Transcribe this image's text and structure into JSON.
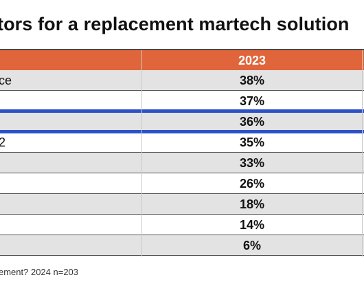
{
  "chart_data": {
    "type": "table",
    "title": "tors for a replacement martech solution",
    "columns": [
      "",
      "2023"
    ],
    "rows": [
      {
        "label": "ce",
        "value": "38%"
      },
      {
        "label": "",
        "value": "37%"
      },
      {
        "label": "",
        "value": "36%"
      },
      {
        "label": "2",
        "value": "35%"
      },
      {
        "label": "",
        "value": "33%"
      },
      {
        "label": "",
        "value": "26%"
      },
      {
        "label": "",
        "value": "18%"
      },
      {
        "label": "",
        "value": "14%"
      },
      {
        "label": "",
        "value": "6%"
      }
    ],
    "highlighted_row_index": 2,
    "footnote": "ement? 2024 n=203",
    "colors": {
      "header": "#e0653a",
      "shaded_row": "#e3e3e3",
      "highlight": "#2b52c8"
    }
  }
}
